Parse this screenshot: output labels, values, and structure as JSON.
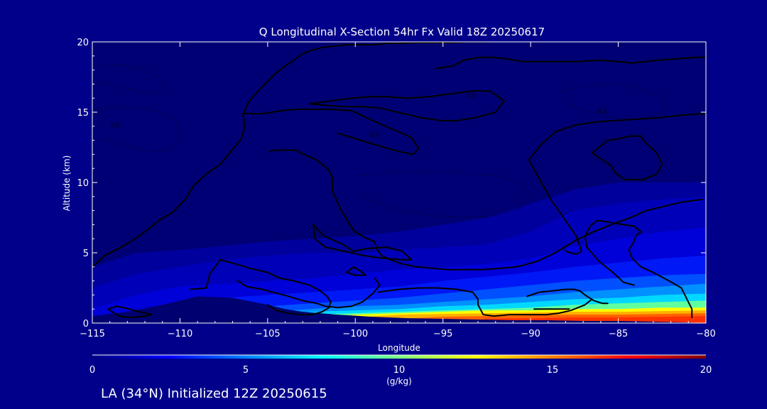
{
  "page": {
    "background": "#00008b",
    "init_text": "LA (34°N) Initialized 12Z 20250615"
  },
  "chart_data": {
    "type": "heatmap",
    "title": "Q Longitudinal X-Section 54hr  Fx Valid 18Z 20250617",
    "xlabel": "Longitude",
    "ylabel": "Altitude (km)",
    "xlim": [
      -115,
      -80
    ],
    "ylim": [
      0,
      20
    ],
    "x_ticks": [
      -115,
      -110,
      -105,
      -100,
      -95,
      -90,
      -85,
      -80
    ],
    "x_tick_labels": [
      "−115",
      "−110",
      "−105",
      "−100",
      "−95",
      "−90",
      "−85",
      "−80"
    ],
    "y_ticks": [
      0,
      5,
      10,
      15,
      20
    ],
    "y_tick_labels": [
      "0",
      "5",
      "10",
      "15",
      "20"
    ],
    "grid": false,
    "colorbar": {
      "label": "(g/kg)",
      "range": [
        0,
        20
      ],
      "ticks": [
        0,
        5,
        10,
        15,
        20
      ],
      "tick_labels": [
        "0",
        "5",
        "10",
        "15",
        "20"
      ],
      "colormap": [
        "#000080",
        "#0000ff",
        "#0080ff",
        "#00ffff",
        "#80ff80",
        "#ffff00",
        "#ff8000",
        "#ff0000",
        "#800000"
      ]
    },
    "field": {
      "columns_lon": [
        -115,
        -112.5,
        -110,
        -107.5,
        -105,
        -102.5,
        -100,
        -97.5,
        -95,
        -92.5,
        -90,
        -87.5,
        -85,
        -82.5,
        -80
      ],
      "levels": [
        {
          "q": 0.5,
          "color": "#00009c",
          "heights_km": [
            4.0,
            5.0,
            5.2,
            5.5,
            5.8,
            6.0,
            6.2,
            6.5,
            7.0,
            7.5,
            8.5,
            9.5,
            10.0,
            10.0,
            10.0
          ]
        },
        {
          "q": 1.5,
          "color": "#0000b8",
          "heights_km": [
            2.5,
            3.5,
            4.0,
            4.5,
            4.8,
            5.0,
            5.0,
            5.2,
            5.4,
            5.6,
            6.5,
            8.0,
            8.5,
            8.8,
            9.0
          ]
        },
        {
          "q": 3.0,
          "color": "#0000d8",
          "heights_km": [
            1.0,
            2.0,
            2.6,
            2.8,
            3.0,
            3.2,
            3.5,
            3.8,
            4.0,
            4.2,
            4.6,
            5.5,
            6.0,
            6.5,
            6.8
          ]
        },
        {
          "q": 4.5,
          "color": "#0018f5",
          "heights_km": [
            0.0,
            0.8,
            1.5,
            1.8,
            2.0,
            2.2,
            2.4,
            2.6,
            3.0,
            3.3,
            3.6,
            4.0,
            4.3,
            4.6,
            4.8
          ]
        },
        {
          "q": 6.0,
          "color": "#0050ff",
          "heights_km": [
            0.0,
            0.0,
            0.0,
            0.4,
            1.2,
            1.4,
            1.6,
            1.8,
            2.1,
            2.4,
            2.7,
            3.0,
            3.2,
            3.4,
            3.5
          ]
        },
        {
          "q": 7.5,
          "color": "#0090ff",
          "heights_km": [
            0.0,
            0.0,
            0.0,
            0.0,
            0.8,
            1.0,
            1.2,
            1.3,
            1.5,
            1.7,
            1.9,
            2.2,
            2.4,
            2.6,
            2.8
          ]
        },
        {
          "q": 9.0,
          "color": "#00d8ff",
          "heights_km": [
            0.0,
            0.0,
            0.0,
            0.0,
            0.5,
            0.8,
            0.9,
            1.0,
            1.2,
            1.3,
            1.5,
            1.7,
            1.8,
            2.0,
            2.1
          ]
        },
        {
          "q": 10.5,
          "color": "#60ffa0",
          "heights_km": [
            0.0,
            0.0,
            0.0,
            0.0,
            0.0,
            0.6,
            0.7,
            0.8,
            0.9,
            1.0,
            1.1,
            1.3,
            1.4,
            1.5,
            1.6
          ]
        },
        {
          "q": 12.0,
          "color": "#ffff00",
          "heights_km": [
            0.0,
            0.0,
            0.0,
            0.0,
            0.0,
            0.4,
            0.6,
            0.7,
            0.8,
            0.9,
            0.9,
            1.0,
            1.0,
            1.1,
            1.1
          ]
        },
        {
          "q": 13.5,
          "color": "#ffb000",
          "heights_km": [
            0.0,
            0.0,
            0.0,
            0.0,
            0.0,
            0.0,
            0.4,
            0.6,
            0.65,
            0.7,
            0.75,
            0.8,
            0.8,
            0.85,
            0.9
          ]
        },
        {
          "q": 15.0,
          "color": "#ff6000",
          "heights_km": [
            0.0,
            0.0,
            0.0,
            0.0,
            0.0,
            0.0,
            0.0,
            0.3,
            0.45,
            0.5,
            0.55,
            0.6,
            0.6,
            0.65,
            0.7
          ]
        },
        {
          "q": 16.0,
          "color": "#ff3000",
          "heights_km": [
            0.0,
            0.0,
            0.0,
            0.0,
            0.0,
            0.0,
            0.0,
            0.0,
            0.0,
            0.3,
            0.35,
            0.4,
            0.4,
            0.45,
            0.5
          ]
        }
      ]
    },
    "terrain": {
      "color": "#000070",
      "lon": [
        -115,
        -113,
        -111,
        -109,
        -107,
        -105,
        -104,
        -103,
        -101,
        -99,
        -97,
        -95,
        -93,
        -91,
        -89,
        -87,
        -85,
        -83,
        -81,
        -80
      ],
      "height_km": [
        0.5,
        0.8,
        1.3,
        1.9,
        1.8,
        1.3,
        1.0,
        0.8,
        0.6,
        0.45,
        0.35,
        0.3,
        0.25,
        0.2,
        0.2,
        0.15,
        0.15,
        0.1,
        0.05,
        0.0
      ]
    },
    "contours": [
      {
        "lon": [
          -115,
          -114.9,
          -114.3,
          -113.5,
          -112.8,
          -112,
          -111.2,
          -110.4,
          -109.7,
          -109.2,
          -108.5,
          -107.7,
          -107.1,
          -106.5,
          -106.3,
          -106.4,
          -106.1,
          -105.4,
          -104.6,
          -104.0,
          -103.5,
          -103.2,
          -102.9,
          -102.5,
          -101.9,
          -101.2,
          -100.5,
          -99.7,
          -98.9,
          -98.1,
          -97.3,
          -96.6,
          -95.9,
          -95.1,
          -94.4,
          -93.7,
          -93.0,
          -92.4
        ],
        "alt": [
          3.9,
          4.1,
          4.8,
          5.3,
          5.8,
          6.5,
          7.3,
          7.9,
          8.8,
          9.8,
          10.6,
          11.3,
          12.2,
          13.1,
          14.0,
          14.8,
          15.7,
          16.7,
          17.7,
          18.3,
          18.7,
          19.0,
          19.2,
          19.4,
          19.6,
          19.7,
          19.8,
          19.8,
          19.8,
          19.9,
          19.9,
          19.95,
          19.95,
          19.95,
          19.95,
          20.0,
          20.0,
          20.0
        ]
      },
      {
        "lon": [
          -104.9,
          -104.6,
          -103.7,
          -103.4,
          -103.1,
          -102.2,
          -101.5,
          -101.3,
          -101.3,
          -100.8,
          -100.1,
          -99.5,
          -98.9,
          -98.8,
          -98.5,
          -98.0,
          -97.3,
          -96.5,
          -95.6,
          -94.7,
          -93.8,
          -92.8,
          -91.7,
          -90.8,
          -89.6,
          -88.6,
          -87.4,
          -86.4,
          -85.4,
          -84.3,
          -83.4,
          -82.4,
          -81.4,
          -80.2
        ],
        "alt": [
          12.2,
          12.3,
          12.3,
          12.3,
          12.1,
          11.6,
          10.9,
          10.3,
          9.4,
          8.0,
          6.6,
          6.1,
          5.8,
          5.3,
          4.8,
          4.5,
          4.2,
          4.0,
          3.9,
          3.8,
          3.8,
          3.8,
          3.9,
          4.0,
          4.4,
          5.0,
          5.9,
          6.5,
          7.0,
          7.5,
          8.0,
          8.3,
          8.6,
          8.8
        ]
      },
      {
        "lon": [
          -102.4,
          -101.8,
          -100.7,
          -100.1,
          -99.4,
          -98.2,
          -97.3,
          -96.8,
          -97.2,
          -98.4,
          -99.5,
          -100.6,
          -101.7,
          -102.3,
          -102.4
        ],
        "alt": [
          7.0,
          6.2,
          5.6,
          5.1,
          5.3,
          5.4,
          5.1,
          4.5,
          4.5,
          4.6,
          4.8,
          5.1,
          5.4,
          6.0,
          7.0
        ]
      },
      {
        "lon": [
          -100.1,
          -99.7,
          -99.4,
          -100.0,
          -100.5,
          -100.1
        ],
        "alt": [
          4.0,
          3.7,
          3.4,
          3.4,
          3.6,
          4.0
        ]
      },
      {
        "lon": [
          -95.4,
          -94.4,
          -93.8,
          -92.9,
          -92.2,
          -91.4,
          -90.4,
          -89.5,
          -88.4,
          -87.3,
          -86.1,
          -85.0,
          -84.2,
          -83.5,
          -82.7,
          -81.6,
          -80.6,
          -80.0
        ],
        "alt": [
          18.1,
          18.3,
          18.7,
          18.9,
          18.9,
          18.8,
          18.6,
          18.6,
          18.6,
          18.6,
          18.7,
          18.6,
          18.5,
          18.6,
          18.7,
          18.8,
          18.9,
          18.9
        ]
      },
      {
        "lon": [
          -102.6,
          -101.4,
          -100.2,
          -99.2,
          -98.1,
          -97.0,
          -95.8,
          -94.6,
          -93.4,
          -92.3,
          -91.5,
          -92.0,
          -93.2,
          -94.2,
          -95.1,
          -96.2,
          -97.6,
          -98.6,
          -99.6,
          -100.7,
          -101.8,
          -102.6
        ],
        "alt": [
          15.6,
          15.8,
          16.0,
          16.1,
          16.1,
          16.0,
          16.1,
          16.3,
          16.5,
          16.5,
          15.8,
          15.0,
          14.6,
          14.4,
          14.4,
          14.6,
          15.0,
          15.3,
          15.4,
          15.4,
          15.5,
          15.6
        ]
      },
      {
        "lon": [
          -106.4,
          -105.2,
          -104.3,
          -103.4,
          -102.5,
          -101.4,
          -100.2,
          -99.0,
          -97.7,
          -96.8,
          -96.4,
          -96.7,
          -97.5,
          -98.9,
          -100.2,
          -101.0
        ],
        "alt": [
          14.9,
          14.9,
          15.1,
          15.2,
          15.2,
          15.2,
          15.1,
          14.4,
          13.7,
          13.2,
          12.4,
          12.0,
          12.2,
          12.7,
          13.2,
          13.5
        ]
      },
      {
        "lon": [
          -83.7,
          -84.3,
          -85.0,
          -85.6,
          -86.5,
          -85.4,
          -85.2,
          -84.6,
          -83.6,
          -82.8,
          -82.5,
          -82.8,
          -83.5,
          -83.7
        ],
        "alt": [
          13.3,
          13.3,
          13.1,
          13.0,
          12.1,
          11.2,
          10.7,
          10.2,
          10.2,
          10.6,
          11.3,
          12.1,
          12.9,
          13.3
        ]
      },
      {
        "lon": [
          -80.0,
          -81.3,
          -82.7,
          -84.0,
          -85.2,
          -86.3,
          -87.4,
          -88.6,
          -89.4,
          -90.1,
          -89.7,
          -89.2,
          -88.8,
          -88.4,
          -87.9,
          -87.4,
          -87.2,
          -87.1,
          -87.4,
          -88.0
        ],
        "alt": [
          14.9,
          14.8,
          14.6,
          14.5,
          14.4,
          14.3,
          14.1,
          13.6,
          12.7,
          11.6,
          10.7,
          9.6,
          8.7,
          8.0,
          7.1,
          6.2,
          5.5,
          5.1,
          4.9,
          5.1
        ]
      },
      {
        "lon": [
          -84.1,
          -84.7,
          -85.3,
          -86.1,
          -86.8,
          -86.9,
          -86.6,
          -86.2,
          -85.6,
          -85.2,
          -84.7,
          -84.1,
          -83.7,
          -84.0,
          -84.1,
          -84.4,
          -84.2,
          -83.7,
          -83.0,
          -82.1,
          -81.4,
          -81.2,
          -80.8,
          -80.8
        ],
        "alt": [
          2.7,
          2.9,
          3.6,
          4.4,
          5.4,
          6.2,
          6.9,
          7.3,
          7.2,
          7.1,
          7.0,
          6.9,
          6.5,
          6.2,
          5.8,
          5.2,
          4.6,
          4.0,
          3.6,
          3.0,
          2.5,
          2.0,
          1.0,
          0.4
        ]
      },
      {
        "lon": [
          -111.6,
          -112.3,
          -112.9,
          -113.6,
          -114.1,
          -113.5,
          -112.8,
          -112.0,
          -111.6
        ],
        "alt": [
          0.6,
          0.8,
          1.0,
          1.2,
          1.0,
          0.5,
          0.4,
          0.5,
          0.6
        ]
      },
      {
        "lon": [
          -109.4,
          -108.5,
          -108.3,
          -107.7,
          -106.8,
          -106.0,
          -105.0,
          -104.3,
          -103.5,
          -102.6,
          -102.0,
          -101.6,
          -101.4,
          -101.5,
          -101.9,
          -102.5,
          -103.1,
          -103.8,
          -104.5,
          -105.0
        ],
        "alt": [
          2.4,
          2.5,
          3.5,
          4.5,
          4.2,
          3.9,
          3.6,
          3.2,
          3.0,
          2.7,
          2.3,
          1.9,
          1.5,
          1.1,
          0.8,
          0.6,
          0.6,
          0.7,
          0.9,
          1.3
        ]
      },
      {
        "lon": [
          -106.7,
          -106.2,
          -105.3,
          -104.7,
          -103.8,
          -103.0,
          -102.2,
          -101.7,
          -101.0,
          -100.2,
          -99.6,
          -99.0,
          -98.6,
          -98.9
        ],
        "alt": [
          3.0,
          2.6,
          2.4,
          2.2,
          1.9,
          1.6,
          1.4,
          1.2,
          1.1,
          1.2,
          1.5,
          2.1,
          2.7,
          3.2
        ]
      },
      {
        "lon": [
          -98.7,
          -97.5,
          -96.4,
          -95.3,
          -94.2,
          -93.3,
          -93.0,
          -93.0,
          -92.7,
          -92.1,
          -91.2,
          -90.1,
          -89.1,
          -88.4,
          -87.7,
          -86.9,
          -86.5
        ],
        "alt": [
          2.2,
          2.4,
          2.5,
          2.5,
          2.4,
          2.2,
          1.7,
          1.3,
          0.6,
          0.5,
          0.6,
          0.6,
          0.6,
          0.7,
          0.9,
          1.3,
          1.7
        ]
      },
      {
        "lon": [
          -90.2,
          -89.5,
          -88.7,
          -88.0,
          -87.5,
          -87.2,
          -86.9,
          -86.4,
          -85.9,
          -85.6
        ],
        "alt": [
          1.9,
          2.2,
          2.3,
          2.4,
          2.4,
          2.3,
          2.0,
          1.6,
          1.4,
          1.4
        ]
      },
      {
        "lon": [
          -89.8,
          -89.6,
          -89.2,
          -88.7,
          -88.1,
          -87.8,
          -88.3,
          -88.8,
          -89.3,
          -89.8
        ],
        "alt": [
          1.0,
          1.0,
          1.0,
          1.0,
          1.0,
          1.0,
          1.0,
          1.0,
          1.0,
          1.0
        ]
      }
    ],
    "dotted_contours": [
      {
        "lon": [
          -114.7,
          -113.4,
          -112.3,
          -111.2,
          -110.9,
          -111.3,
          -112.1,
          -113.4,
          -114.7
        ],
        "alt": [
          18.2,
          18.4,
          18.1,
          17.5,
          16.7,
          16.3,
          16.4,
          16.8,
          17.2
        ]
      },
      {
        "lon": [
          -114.9,
          -113.2,
          -111.5,
          -110.3,
          -110.0,
          -110.4,
          -111.4,
          -112.8,
          -114.4
        ],
        "alt": [
          15.2,
          15.4,
          15.2,
          14.5,
          13.3,
          12.4,
          12.2,
          12.5,
          13.1
        ]
      },
      {
        "lon": [
          -99.8,
          -98.0,
          -96.0,
          -94.0,
          -92.0,
          -90.5,
          -90.1,
          -90.7,
          -92.3,
          -94.2,
          -96.1,
          -98.0,
          -99.7
        ],
        "alt": [
          10.5,
          10.7,
          10.8,
          10.7,
          10.5,
          10.0,
          9.0,
          8.1,
          7.6,
          7.5,
          7.7,
          8.2,
          9.0
        ]
      },
      {
        "lon": [
          -88.3,
          -86.8,
          -85.2,
          -83.8,
          -82.6,
          -82.2,
          -82.9,
          -84.1,
          -85.8,
          -87.3,
          -88.2
        ],
        "alt": [
          16.5,
          16.9,
          17.0,
          16.7,
          16.1,
          15.2,
          14.7,
          14.5,
          14.7,
          15.3,
          16.0
        ]
      }
    ],
    "contour_labels": [
      {
        "lon": -113.7,
        "alt": 14.1,
        "text": "0.5"
      },
      {
        "lon": -98.9,
        "alt": 13.4,
        "text": "0.5"
      },
      {
        "lon": -93.4,
        "alt": 16.2,
        "text": "0.5"
      },
      {
        "lon": -88.1,
        "alt": 5.3,
        "text": "1"
      },
      {
        "lon": -85.9,
        "alt": 15.1,
        "text": "0.5"
      }
    ]
  }
}
